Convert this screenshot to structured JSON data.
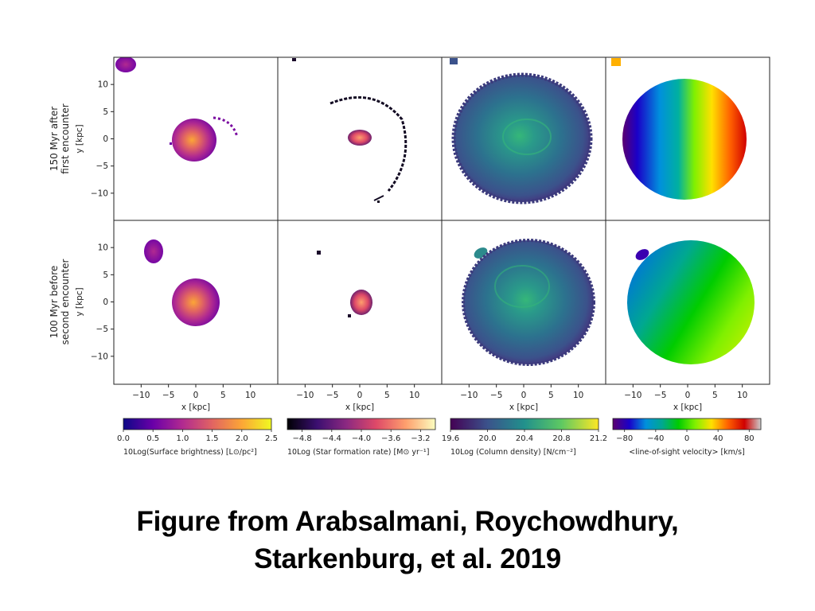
{
  "caption": {
    "line1": "Figure from Arabsalmani, Roychowdhury,",
    "line2": "Starkenburg, et al. 2019"
  },
  "chart_data": {
    "type": "heatmap",
    "rows": [
      {
        "label_line1": "150 Myr after",
        "label_line2": "first encounter",
        "ylabel": "y [kpc]"
      },
      {
        "label_line1": "100 Myr before",
        "label_line2": "second encounter",
        "ylabel": "y [kpc]"
      }
    ],
    "xlabel": "x [kpc]",
    "x_ticks": [
      "−10",
      "−5",
      "0",
      "5",
      "10"
    ],
    "y_ticks": [
      "10",
      "5",
      "0",
      "−5",
      "−10"
    ],
    "xlim": [
      -15,
      15
    ],
    "ylim": [
      -15,
      15
    ],
    "grid": false,
    "panels": [
      {
        "row": 0,
        "quantity": "surface brightness",
        "cmap": "plasma"
      },
      {
        "row": 0,
        "quantity": "star formation rate",
        "cmap": "magma"
      },
      {
        "row": 0,
        "quantity": "column density",
        "cmap": "viridis"
      },
      {
        "row": 0,
        "quantity": "line-of-sight velocity",
        "cmap": "nipy_spectral"
      },
      {
        "row": 1,
        "quantity": "surface brightness",
        "cmap": "plasma"
      },
      {
        "row": 1,
        "quantity": "star formation rate",
        "cmap": "magma"
      },
      {
        "row": 1,
        "quantity": "column density",
        "cmap": "viridis"
      },
      {
        "row": 1,
        "quantity": "line-of-sight velocity",
        "cmap": "nipy_spectral"
      }
    ],
    "colorbars": [
      {
        "label": "10Log(Surface brightness) [L⊙/pc²]",
        "ticks": [
          "0.0",
          "0.5",
          "1.0",
          "1.5",
          "2.0",
          "2.5"
        ],
        "range": [
          0.0,
          2.5
        ],
        "cmap": "plasma"
      },
      {
        "label": "10Log (Star formation rate) [M⊙ yr⁻¹]",
        "ticks": [
          "−4.8",
          "−4.4",
          "−4.0",
          "−3.6",
          "−3.2"
        ],
        "range": [
          -5.0,
          -3.0
        ],
        "cmap": "magma"
      },
      {
        "label": "10Log (Column density) [N/cm⁻²]",
        "ticks": [
          "19.6",
          "20.0",
          "20.4",
          "20.8",
          "21.2"
        ],
        "range": [
          19.6,
          21.2
        ],
        "cmap": "viridis"
      },
      {
        "label": "<line-of-sight velocity> [km/s]",
        "ticks": [
          "−80",
          "−40",
          "0",
          "40",
          "80"
        ],
        "range": [
          -95,
          95
        ],
        "cmap": "nipy_spectral"
      }
    ]
  },
  "colors": {
    "plasma": [
      "#0d0887",
      "#6a00a8",
      "#b12a90",
      "#e16462",
      "#fca636",
      "#f0f921"
    ],
    "magma": [
      "#000004",
      "#3b0f70",
      "#8c2981",
      "#de4968",
      "#fe9f6d",
      "#fcfdbf"
    ],
    "viridis": [
      "#440154",
      "#3b528b",
      "#21918c",
      "#5ec962",
      "#fde725"
    ],
    "nipy_spectral": [
      "#5b0070",
      "#1a00c8",
      "#0090dd",
      "#00a890",
      "#00cc00",
      "#80f000",
      "#ffe000",
      "#ff6000",
      "#d00000",
      "#cccccc"
    ]
  }
}
